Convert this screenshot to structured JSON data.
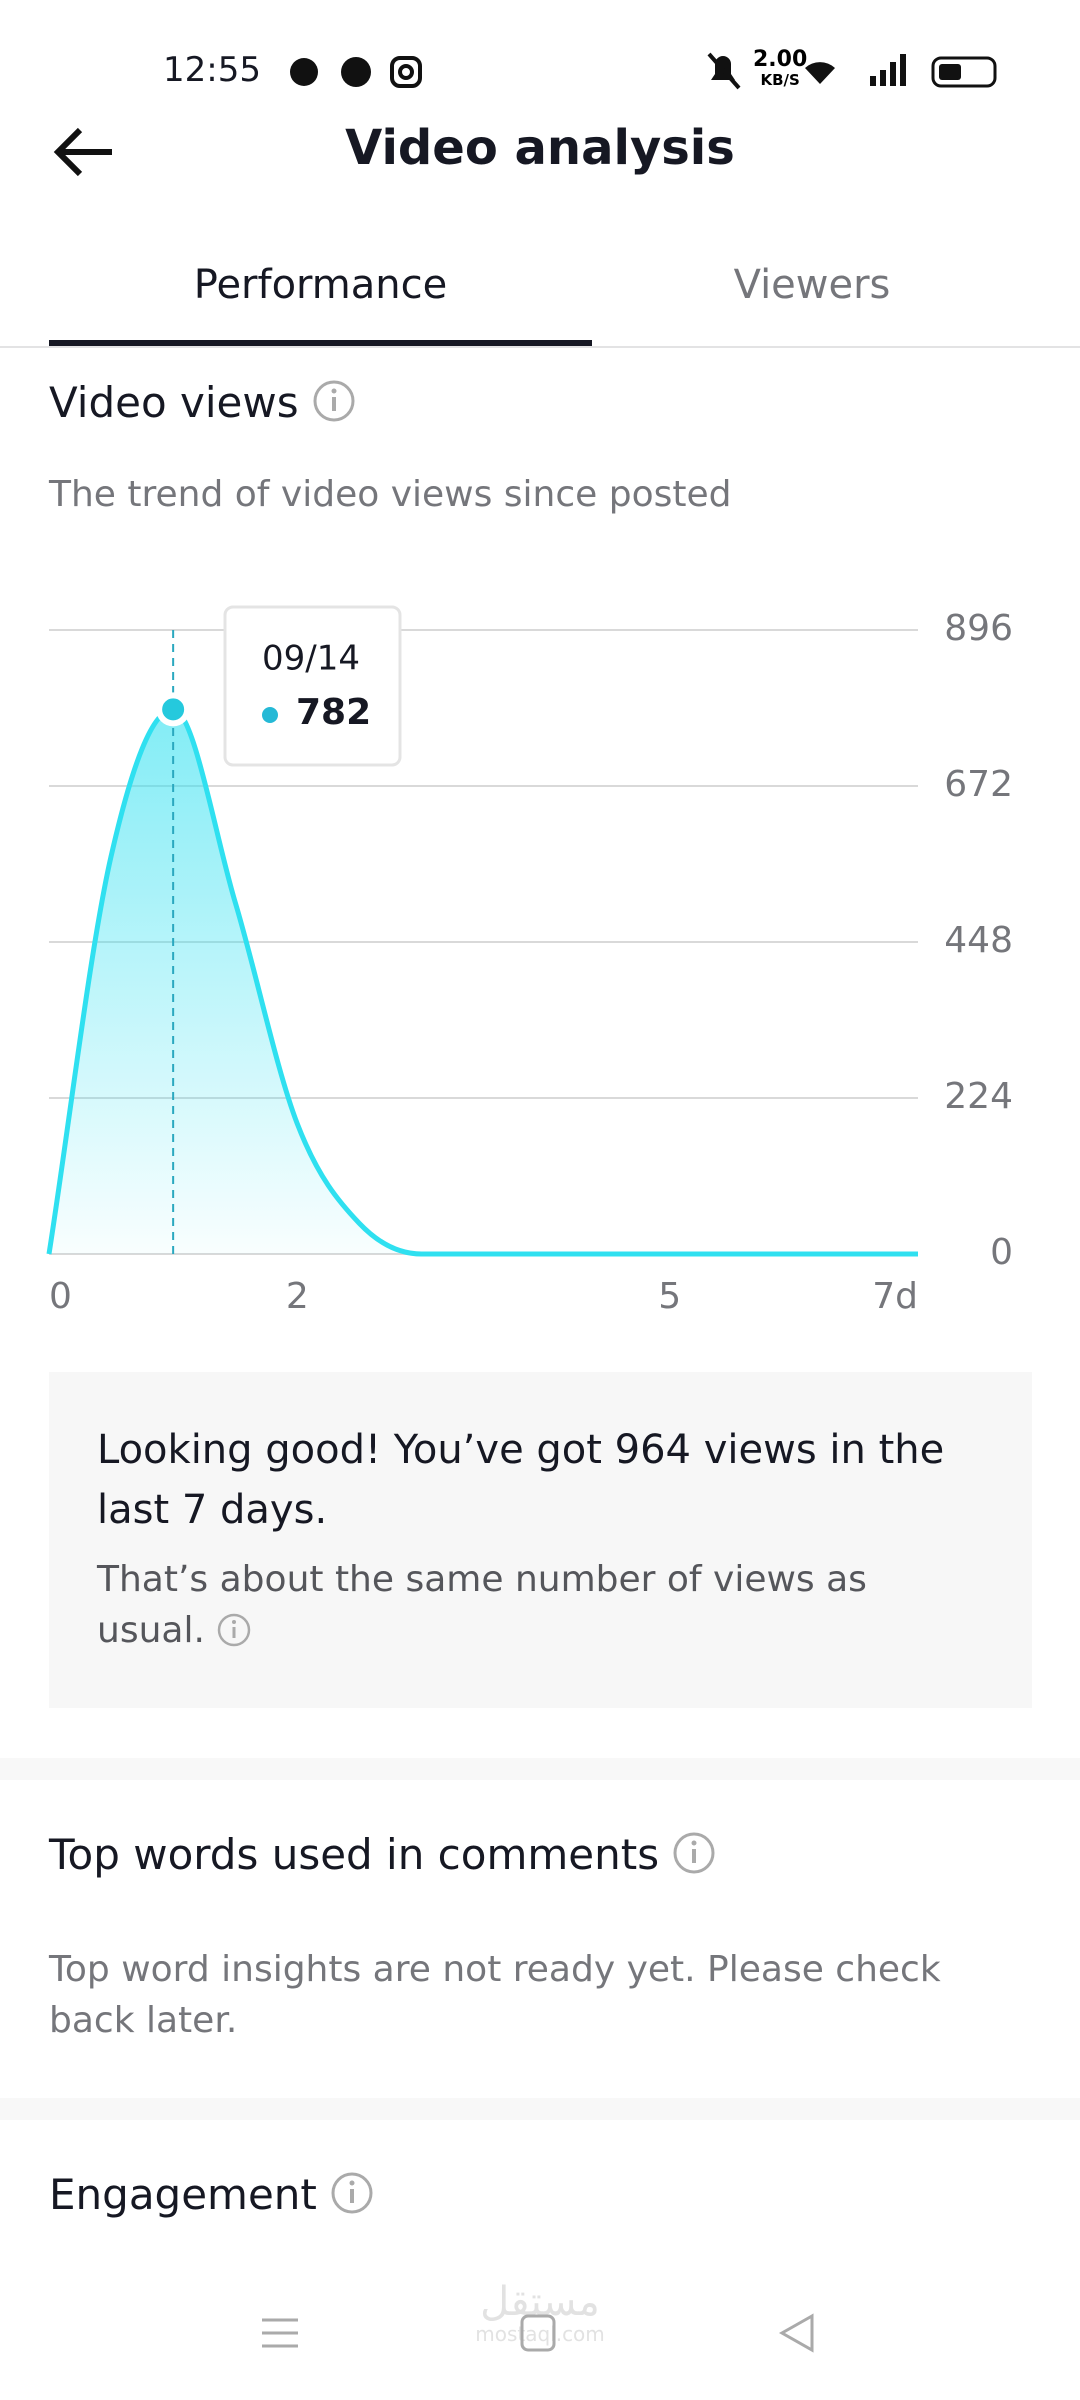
{
  "status_bar": {
    "time": "12:55",
    "speed": "2.00",
    "speed_unit": "KB/S"
  },
  "header": {
    "title": "Video analysis"
  },
  "tabs": [
    "Performance",
    "Viewers"
  ],
  "video_views": {
    "title": "Video views",
    "subtitle": "The trend of video views since posted",
    "chart_data": {
      "type": "area",
      "x": [
        0,
        0.5,
        1,
        1.5,
        2,
        2.5,
        3,
        4,
        5,
        6,
        7
      ],
      "values": [
        0,
        571,
        782,
        505,
        187,
        44,
        0,
        0,
        0,
        0,
        0
      ],
      "color": "#2fe0f0",
      "xlim": [
        0,
        7
      ],
      "xticks": [
        0,
        2,
        5,
        {
          "value": 7,
          "label": "7d"
        }
      ],
      "ylim": [
        0,
        896
      ],
      "yticks": [
        0,
        224,
        448,
        672,
        896
      ],
      "grid": true,
      "tooltip_label": "09/14"
    },
    "summary": {
      "title": "Looking good! You’ve got 964 views in the last 7 days.",
      "body": "That’s about the same number of views as usual."
    }
  },
  "top_words": {
    "title": "Top words used in comments",
    "body": "Top word insights are not ready yet. Please check back later."
  },
  "engagement": {
    "title": "Engagement"
  },
  "watermark": {
    "arabic": "مستقل",
    "latin": "mostaql.com"
  }
}
